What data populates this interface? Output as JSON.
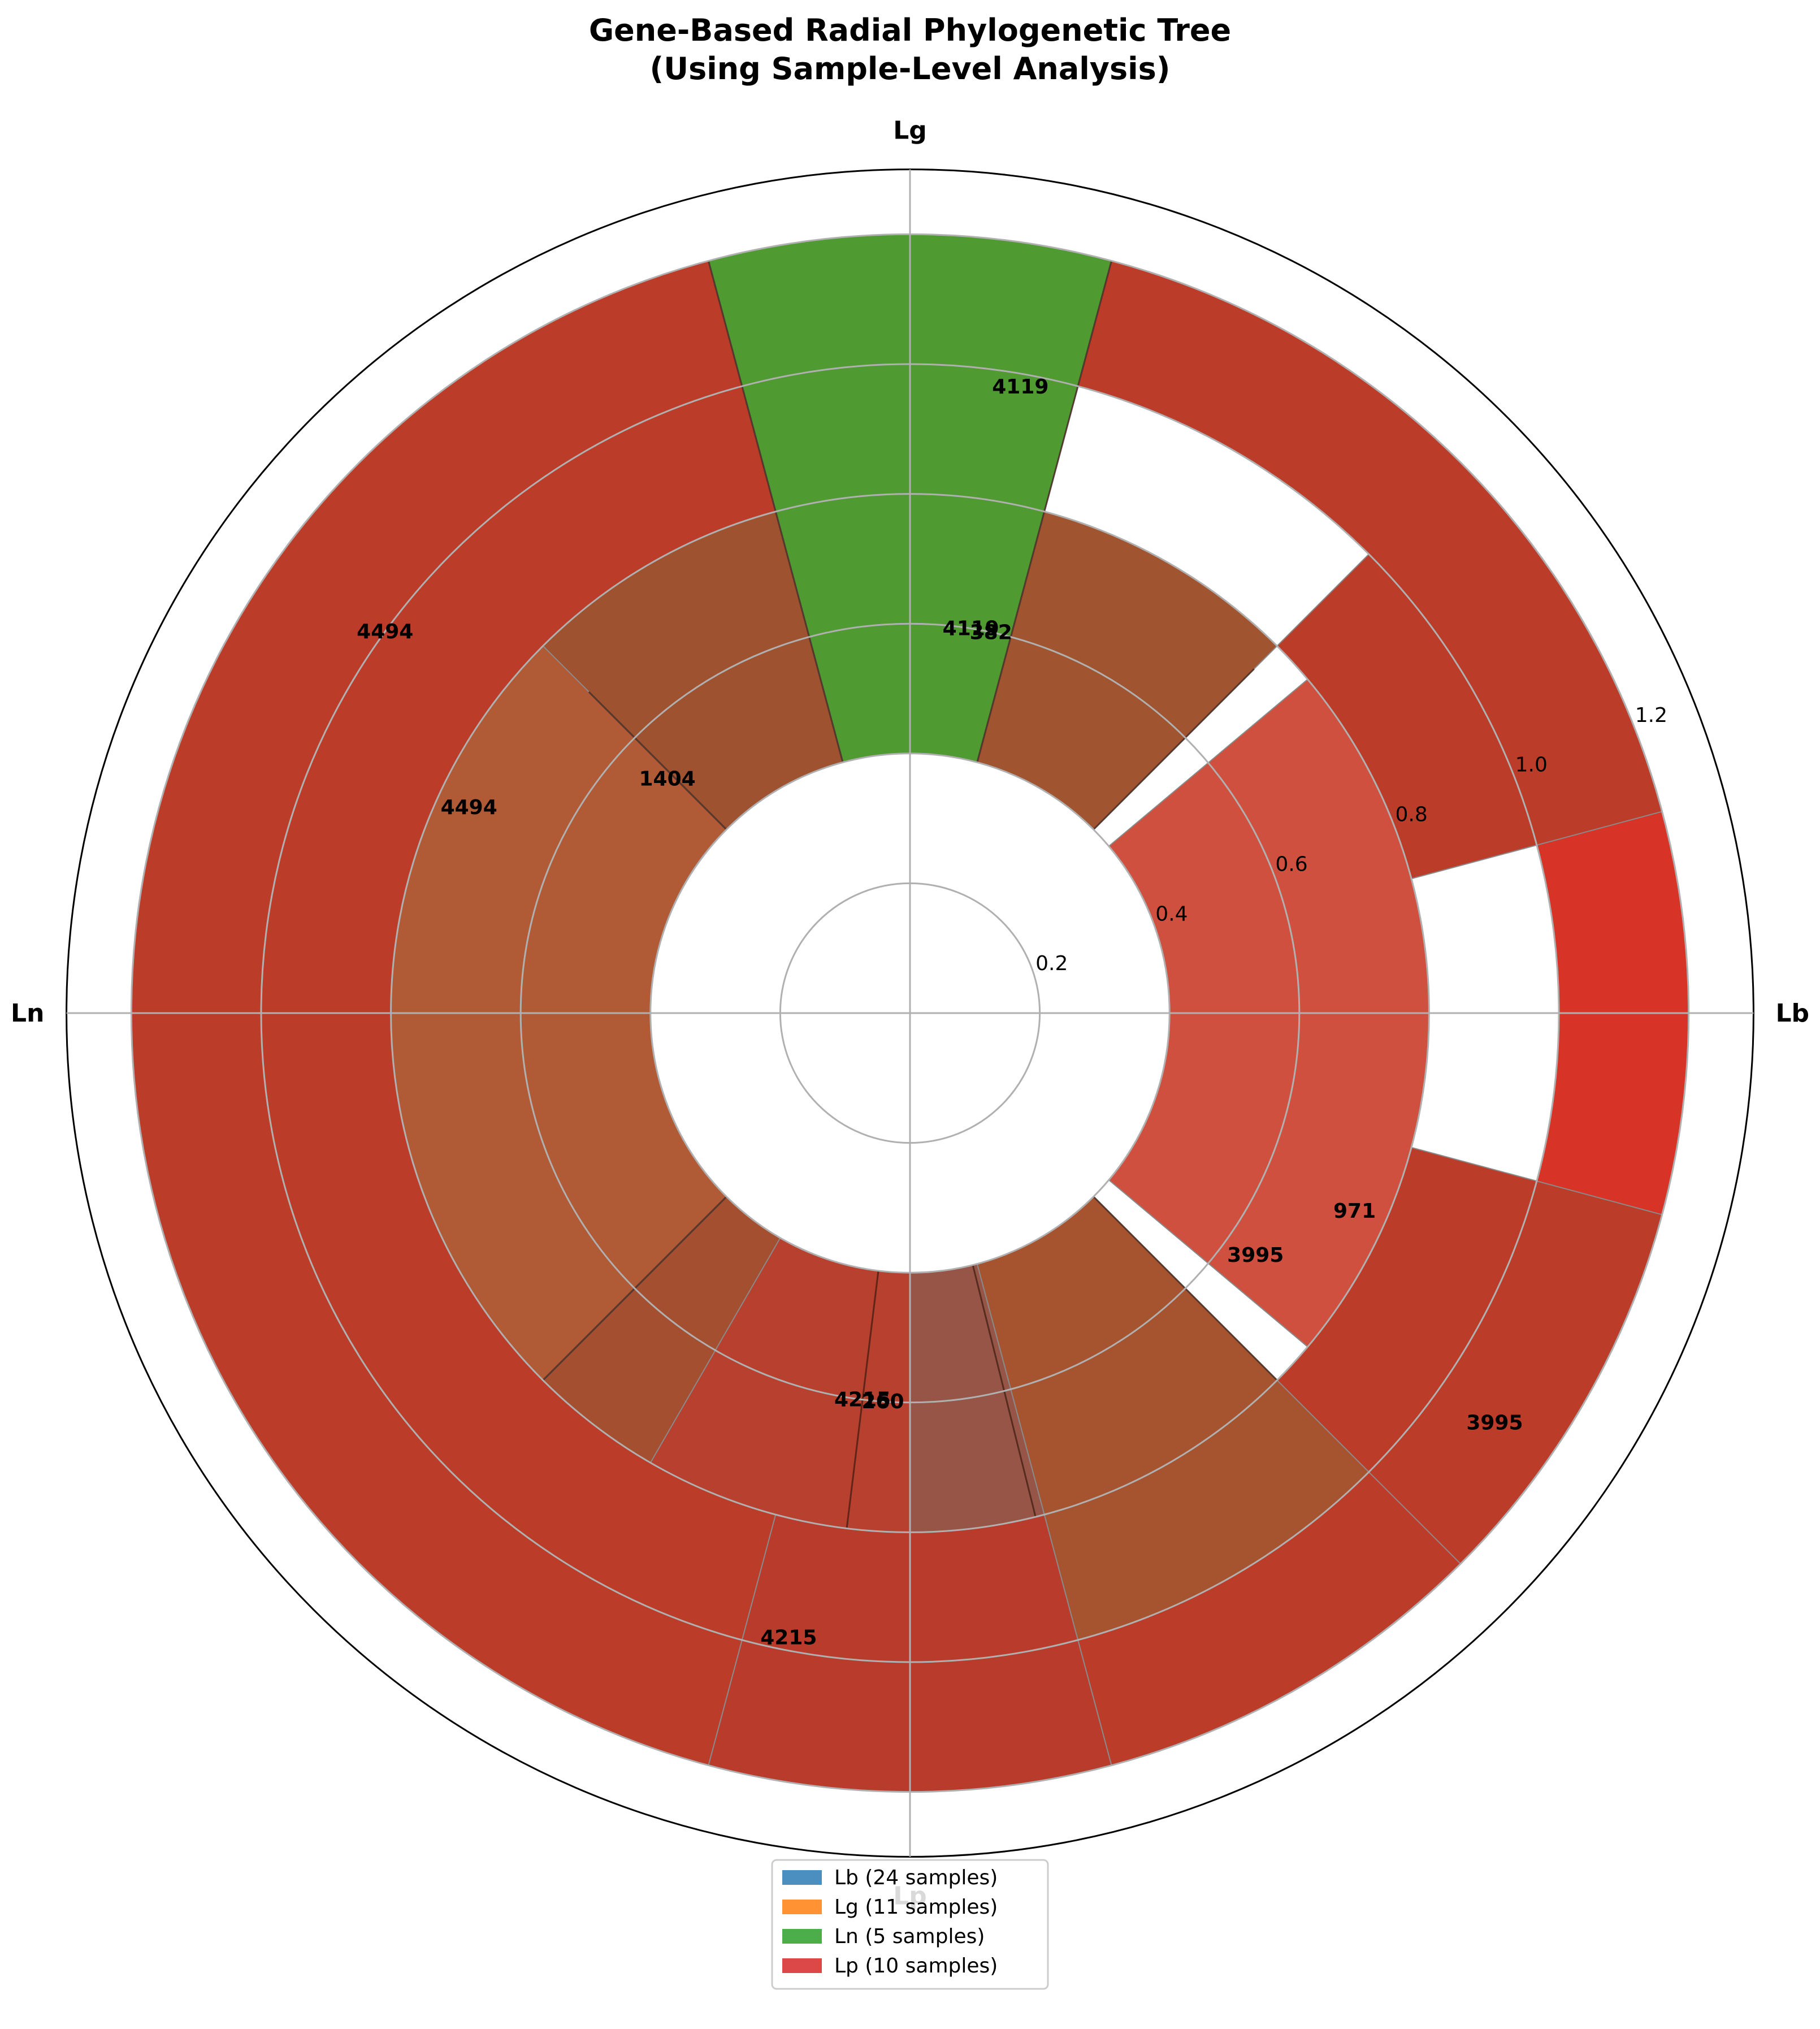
{
  "chart_data": {
    "type": "radial-bar",
    "title_lines": [
      "Gene-Based Radial Phylogenetic Tree",
      "(Using Sample-Level Analysis)"
    ],
    "categories": [
      "Lb",
      "Lg",
      "Ln",
      "Lp"
    ],
    "category_angles_deg": [
      0,
      90,
      180,
      270
    ],
    "radial_ticks": [
      "0.2",
      "0.4",
      "0.6",
      "0.8",
      "1.0",
      "1.2"
    ],
    "radial_tick_values": [
      0.2,
      0.4,
      0.6,
      0.8,
      1.0,
      1.2
    ],
    "rlim": [
      0,
      1.3
    ],
    "legend": {
      "placement": "bottom-center",
      "entries": [
        {
          "label": "Lb (24 samples)",
          "color": "#2c7bb6"
        },
        {
          "label": "Lg (11 samples)",
          "color": "#ff7f0e"
        },
        {
          "label": "Ln (5 samples)",
          "color": "#2ca02c"
        },
        {
          "label": "Lp (10 samples)",
          "color": "#d62728"
        }
      ]
    },
    "segments": [
      {
        "theta1": -45,
        "theta2": 45,
        "r_inner": 1.0,
        "r_outer": 1.2,
        "color": "#d73427"
      },
      {
        "theta1": -40,
        "theta2": 40,
        "r_inner": 0.4,
        "r_outer": 0.8,
        "color": "#cf503e"
      },
      {
        "theta1": 15,
        "theta2": 45,
        "r_inner": 0.8,
        "r_outer": 1.0,
        "color": "#bc3c2a"
      },
      {
        "theta1": -45,
        "theta2": -15,
        "r_inner": 0.8,
        "r_outer": 1.0,
        "color": "#bc3c2a"
      },
      {
        "theta1": 15,
        "theta2": 75,
        "r_inner": 1.0,
        "r_outer": 1.2,
        "color": "#bc3c2a"
      },
      {
        "theta1": -75,
        "theta2": -15,
        "r_inner": 1.0,
        "r_outer": 1.2,
        "color": "#bc3c2a"
      },
      {
        "theta1": 45,
        "theta2": 75,
        "r_inner": 0.4,
        "r_outer": 0.8,
        "color": "#a0542f"
      },
      {
        "theta1": -75,
        "theta2": -45,
        "r_inner": 0.4,
        "r_outer": 0.8,
        "color": "#a0542f"
      },
      {
        "theta1": 75,
        "theta2": 105,
        "r_inner": 0.4,
        "r_outer": 1.2,
        "color": "#4f9a31"
      },
      {
        "theta1": 105,
        "theta2": 255,
        "r_inner": 1.0,
        "r_outer": 1.2,
        "color": "#bc3c2a"
      },
      {
        "theta1": 105,
        "theta2": 255,
        "r_inner": 0.8,
        "r_outer": 1.0,
        "color": "#bc3c2a"
      },
      {
        "theta1": 105,
        "theta2": 135,
        "r_inner": 0.4,
        "r_outer": 0.8,
        "color": "#9e5230"
      },
      {
        "theta1": 135,
        "theta2": 225,
        "r_inner": 0.6,
        "r_outer": 0.8,
        "color": "#b05a36"
      },
      {
        "theta1": 135,
        "theta2": 225,
        "r_inner": 0.4,
        "r_outer": 0.6,
        "color": "#b05a36"
      },
      {
        "theta1": 225,
        "theta2": 255,
        "r_inner": 0.4,
        "r_outer": 0.8,
        "color": "#a54f31"
      },
      {
        "theta1": 255,
        "theta2": 285,
        "r_inner": 0.8,
        "r_outer": 1.2,
        "color": "#b93b2c"
      },
      {
        "theta1": 255,
        "theta2": 285,
        "r_inner": 0.4,
        "r_outer": 0.8,
        "color": "#965546"
      },
      {
        "theta1": 285,
        "theta2": 315,
        "r_inner": 0.4,
        "r_outer": 1.0,
        "color": "#a6532f"
      },
      {
        "theta1": 285,
        "theta2": 315,
        "r_inner": 1.0,
        "r_outer": 1.2,
        "color": "#bc3c2a"
      },
      {
        "theta1": 240,
        "theta2": 270,
        "r_inner": 0.4,
        "r_outer": 0.8,
        "color": "#b7402e"
      }
    ],
    "value_labels": [
      {
        "text": "4119",
        "r": 0.98,
        "theta": 80
      },
      {
        "text": "4119",
        "r": 0.6,
        "theta": 81
      },
      {
        "text": "382",
        "r": 0.6,
        "theta": 78
      },
      {
        "text": "1404",
        "r": 0.52,
        "theta": 136
      },
      {
        "text": "4494",
        "r": 1.0,
        "theta": 144
      },
      {
        "text": "4494",
        "r": 0.75,
        "theta": 155
      },
      {
        "text": "971",
        "r": 0.75,
        "theta": -24
      },
      {
        "text": "3995",
        "r": 0.65,
        "theta": -35
      },
      {
        "text": "3995",
        "r": 1.1,
        "theta": -35
      },
      {
        "text": "4215",
        "r": 0.6,
        "theta": 263
      },
      {
        "text": "260",
        "r": 0.6,
        "theta": 266
      },
      {
        "text": "4215",
        "r": 0.98,
        "theta": 259
      }
    ]
  }
}
